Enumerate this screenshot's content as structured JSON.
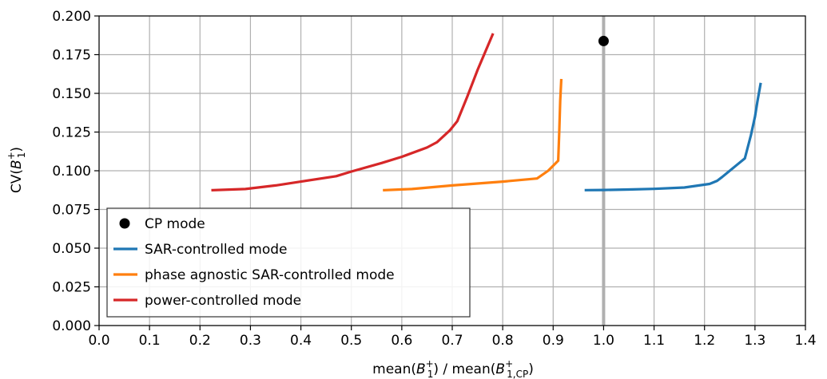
{
  "chart_data": {
    "type": "line",
    "title": "",
    "xlabel": {
      "pre": "mean(",
      "var": "B",
      "sub": "1",
      "sup": "+",
      "mid": ") / mean(",
      "var2": "B",
      "sub2": "1,CP",
      "sup2": "+",
      "post": ")"
    },
    "ylabel": {
      "pre": "CV(",
      "var": "B",
      "sub": "1",
      "sup": "+",
      "post": ")"
    },
    "xlim": [
      0.0,
      1.4
    ],
    "ylim": [
      0.0,
      0.2
    ],
    "xticks": [
      "0.0",
      "0.1",
      "0.2",
      "0.3",
      "0.4",
      "0.5",
      "0.6",
      "0.7",
      "0.8",
      "0.9",
      "1.0",
      "1.1",
      "1.2",
      "1.3",
      "1.4"
    ],
    "yticks": [
      "0.000",
      "0.025",
      "0.050",
      "0.075",
      "0.100",
      "0.125",
      "0.150",
      "0.175",
      "0.200"
    ],
    "grid": true,
    "legend_position": "lower-left",
    "vline": {
      "x": 1.0,
      "color": "#b0b0b0"
    },
    "points": [
      {
        "name": "CP mode",
        "x": 1.0,
        "y": 0.1838,
        "color": "#000000"
      }
    ],
    "series": [
      {
        "name": "SAR-controlled mode",
        "color": "#1f77b4",
        "x": [
          0.965,
          1.0,
          1.05,
          1.1,
          1.16,
          1.21,
          1.225,
          1.235,
          1.25,
          1.265,
          1.28,
          1.292,
          1.3,
          1.305,
          1.311
        ],
        "y": [
          0.0875,
          0.0876,
          0.0879,
          0.0883,
          0.0892,
          0.0915,
          0.0935,
          0.096,
          0.1,
          0.104,
          0.108,
          0.123,
          0.135,
          0.145,
          0.156
        ]
      },
      {
        "name": "phase agnostic SAR-controlled mode",
        "color": "#ff7f0e",
        "x": [
          0.565,
          0.62,
          0.7,
          0.8,
          0.868,
          0.89,
          0.91,
          0.912,
          0.914,
          0.916
        ],
        "y": [
          0.0875,
          0.0882,
          0.0905,
          0.093,
          0.095,
          0.1,
          0.1065,
          0.125,
          0.145,
          0.1585
        ]
      },
      {
        "name": "power-controlled mode",
        "color": "#d62728",
        "x": [
          0.225,
          0.29,
          0.35,
          0.4,
          0.47,
          0.5,
          0.56,
          0.6,
          0.65,
          0.67,
          0.695,
          0.71,
          0.73,
          0.75,
          0.78
        ],
        "y": [
          0.0875,
          0.0882,
          0.0905,
          0.093,
          0.0965,
          0.0995,
          0.105,
          0.109,
          0.115,
          0.1185,
          0.126,
          0.132,
          0.148,
          0.165,
          0.188
        ]
      }
    ]
  }
}
